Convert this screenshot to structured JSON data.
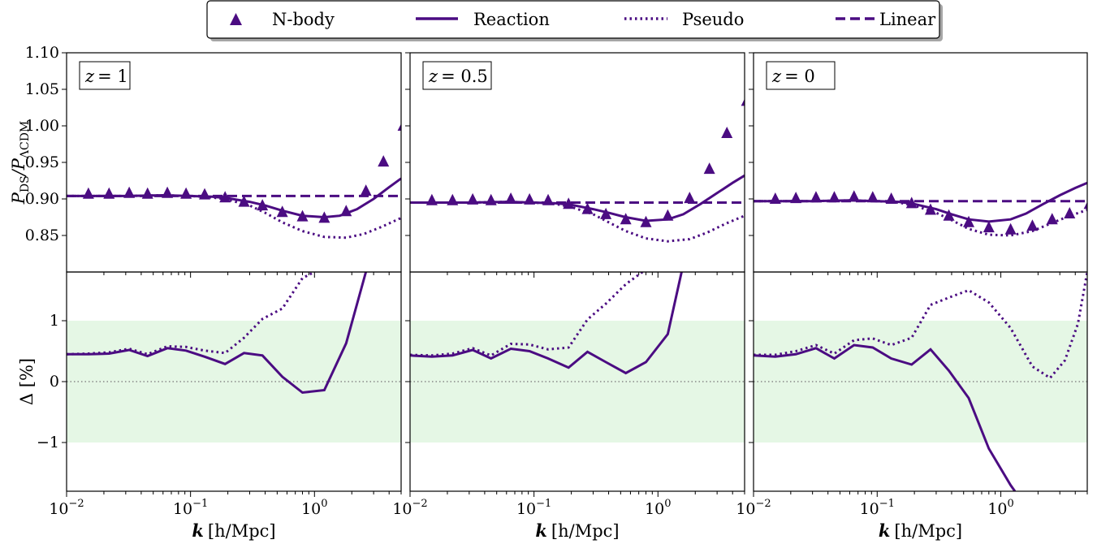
{
  "legend": {
    "nbody": "N-body",
    "reaction": "Reaction",
    "pseudo": "Pseudo",
    "linear": "Linear"
  },
  "colors": {
    "line": "#4b0c82",
    "band": "#e5f7e5",
    "zero": "#888888"
  },
  "axes": {
    "ylabel_top": "PDS/PΛCDM",
    "ylabel_top_main1": "P",
    "ylabel_top_sub1": "DS",
    "ylabel_top_main2": "/P",
    "ylabel_top_sub2": "ΛCDM",
    "ylabel_bottom": "Δ [%]",
    "xlabel": "k [h/Mpc]",
    "xlabel_k": "k",
    "xlabel_unit": "[h/Mpc]",
    "xticks": [
      {
        "base": "10",
        "exp": "−2"
      },
      {
        "base": "10",
        "exp": "−1"
      },
      {
        "base": "10",
        "exp": "0"
      }
    ],
    "yticks_top": [
      "1.10",
      "1.05",
      "1.00",
      "0.95",
      "0.90",
      "0.85"
    ],
    "yticks_bottom": [
      "1",
      "0",
      "−1"
    ]
  },
  "chart_data": {
    "type": "line",
    "x_scale": "log",
    "xlim": [
      0.01,
      5.0
    ],
    "ylim_top": [
      0.8,
      1.1
    ],
    "ylim_bottom": [
      -1.8,
      1.8
    ],
    "band_bottom": [
      -1,
      1
    ],
    "reference_line_bottom": 0,
    "grid": false,
    "legend_position": "top-center",
    "panels": [
      {
        "label": "z = 1",
        "z_label_var": "z",
        "z_label_val": "= 1",
        "nbody": {
          "x": [
            0.015,
            0.022,
            0.032,
            0.045,
            0.065,
            0.092,
            0.13,
            0.19,
            0.27,
            0.38,
            0.55,
            0.8,
            1.2,
            1.8,
            2.6,
            3.6,
            5.2
          ],
          "y": [
            0.907,
            0.907,
            0.908,
            0.907,
            0.908,
            0.907,
            0.906,
            0.902,
            0.896,
            0.891,
            0.882,
            0.876,
            0.874,
            0.883,
            0.911,
            0.951,
            1.0
          ]
        },
        "reaction": {
          "x": [
            0.01,
            0.03,
            0.06,
            0.1,
            0.15,
            0.2,
            0.3,
            0.4,
            0.55,
            0.8,
            1.2,
            1.6,
            2.2,
            3.0,
            4.0,
            5.0
          ],
          "y": [
            0.904,
            0.904,
            0.905,
            0.904,
            0.903,
            0.901,
            0.896,
            0.891,
            0.884,
            0.877,
            0.875,
            0.877,
            0.886,
            0.9,
            0.916,
            0.928
          ]
        },
        "pseudo": {
          "x": [
            0.01,
            0.03,
            0.06,
            0.1,
            0.15,
            0.2,
            0.3,
            0.4,
            0.55,
            0.8,
            1.2,
            1.8,
            2.5,
            3.5,
            5.0
          ],
          "y": [
            0.904,
            0.904,
            0.905,
            0.904,
            0.902,
            0.899,
            0.891,
            0.881,
            0.868,
            0.856,
            0.848,
            0.847,
            0.852,
            0.862,
            0.874
          ]
        },
        "linear": {
          "x": [
            0.01,
            5.0
          ],
          "y": [
            0.904,
            0.904
          ]
        },
        "delta_reaction": {
          "x": [
            0.01,
            0.015,
            0.022,
            0.032,
            0.045,
            0.065,
            0.092,
            0.13,
            0.19,
            0.27,
            0.38,
            0.55,
            0.8,
            1.2,
            1.8,
            2.6
          ],
          "y": [
            0.45,
            0.45,
            0.46,
            0.52,
            0.42,
            0.55,
            0.51,
            0.41,
            0.29,
            0.47,
            0.43,
            0.08,
            -0.18,
            -0.14,
            0.63,
            1.8
          ]
        },
        "delta_pseudo": {
          "x": [
            0.01,
            0.015,
            0.022,
            0.032,
            0.045,
            0.065,
            0.092,
            0.13,
            0.19,
            0.27,
            0.38,
            0.55,
            0.8,
            1.0
          ],
          "y": [
            0.45,
            0.46,
            0.48,
            0.54,
            0.45,
            0.58,
            0.57,
            0.51,
            0.47,
            0.72,
            1.03,
            1.2,
            1.7,
            1.8
          ]
        }
      },
      {
        "label": "z = 0.5",
        "z_label_var": "z",
        "z_label_val": "= 0.5",
        "nbody": {
          "x": [
            0.015,
            0.022,
            0.032,
            0.045,
            0.065,
            0.092,
            0.13,
            0.19,
            0.27,
            0.38,
            0.55,
            0.8,
            1.2,
            1.8,
            2.6,
            3.6,
            5.2
          ],
          "y": [
            0.898,
            0.898,
            0.899,
            0.898,
            0.9,
            0.899,
            0.898,
            0.893,
            0.886,
            0.879,
            0.872,
            0.868,
            0.877,
            0.901,
            0.941,
            0.99,
            1.034
          ]
        },
        "reaction": {
          "x": [
            0.01,
            0.03,
            0.06,
            0.1,
            0.15,
            0.2,
            0.3,
            0.4,
            0.55,
            0.8,
            1.2,
            1.6,
            2.2,
            3.0,
            4.0,
            5.0
          ],
          "y": [
            0.895,
            0.895,
            0.896,
            0.895,
            0.894,
            0.892,
            0.886,
            0.881,
            0.875,
            0.87,
            0.872,
            0.879,
            0.893,
            0.908,
            0.922,
            0.932
          ]
        },
        "pseudo": {
          "x": [
            0.01,
            0.03,
            0.06,
            0.1,
            0.15,
            0.2,
            0.3,
            0.4,
            0.55,
            0.8,
            1.2,
            1.8,
            2.5,
            3.5,
            5.0
          ],
          "y": [
            0.895,
            0.895,
            0.896,
            0.895,
            0.893,
            0.889,
            0.879,
            0.868,
            0.856,
            0.846,
            0.842,
            0.845,
            0.854,
            0.866,
            0.877
          ]
        },
        "linear": {
          "x": [
            0.01,
            5.0
          ],
          "y": [
            0.895,
            0.895
          ]
        },
        "delta_reaction": {
          "x": [
            0.01,
            0.015,
            0.022,
            0.032,
            0.045,
            0.065,
            0.092,
            0.13,
            0.19,
            0.27,
            0.38,
            0.55,
            0.8,
            1.2,
            1.55
          ],
          "y": [
            0.43,
            0.41,
            0.43,
            0.52,
            0.38,
            0.54,
            0.5,
            0.38,
            0.23,
            0.49,
            0.32,
            0.14,
            0.32,
            0.78,
            1.8
          ]
        },
        "delta_pseudo": {
          "x": [
            0.01,
            0.015,
            0.022,
            0.032,
            0.045,
            0.065,
            0.092,
            0.13,
            0.19,
            0.27,
            0.38,
            0.55,
            0.75
          ],
          "y": [
            0.44,
            0.43,
            0.46,
            0.55,
            0.43,
            0.62,
            0.61,
            0.53,
            0.56,
            1.02,
            1.28,
            1.6,
            1.8
          ]
        }
      },
      {
        "label": "z = 0",
        "z_label_var": "z",
        "z_label_val": "= 0",
        "nbody": {
          "x": [
            0.015,
            0.022,
            0.032,
            0.045,
            0.065,
            0.092,
            0.13,
            0.19,
            0.27,
            0.38,
            0.55,
            0.8,
            1.2,
            1.8,
            2.6,
            3.6,
            5.2
          ],
          "y": [
            0.9,
            0.901,
            0.902,
            0.902,
            0.903,
            0.902,
            0.9,
            0.894,
            0.885,
            0.877,
            0.868,
            0.861,
            0.858,
            0.863,
            0.872,
            0.88,
            0.893
          ]
        },
        "reaction": {
          "x": [
            0.01,
            0.03,
            0.06,
            0.1,
            0.15,
            0.2,
            0.3,
            0.4,
            0.55,
            0.8,
            1.2,
            1.6,
            2.2,
            3.0,
            4.0,
            5.0
          ],
          "y": [
            0.897,
            0.897,
            0.898,
            0.897,
            0.896,
            0.893,
            0.886,
            0.879,
            0.872,
            0.869,
            0.872,
            0.88,
            0.893,
            0.905,
            0.915,
            0.922
          ]
        },
        "pseudo": {
          "x": [
            0.01,
            0.03,
            0.06,
            0.1,
            0.15,
            0.2,
            0.3,
            0.4,
            0.55,
            0.8,
            1.2,
            1.8,
            2.5,
            3.5,
            5.0
          ],
          "y": [
            0.897,
            0.897,
            0.898,
            0.897,
            0.895,
            0.891,
            0.881,
            0.871,
            0.859,
            0.851,
            0.85,
            0.856,
            0.866,
            0.876,
            0.885
          ]
        },
        "linear": {
          "x": [
            0.01,
            5.0
          ],
          "y": [
            0.897,
            0.897
          ]
        },
        "delta_reaction": {
          "x": [
            0.01,
            0.015,
            0.022,
            0.032,
            0.045,
            0.065,
            0.092,
            0.13,
            0.19,
            0.27,
            0.38,
            0.55,
            0.8,
            1.2,
            1.3
          ],
          "y": [
            0.43,
            0.41,
            0.45,
            0.55,
            0.38,
            0.6,
            0.56,
            0.38,
            0.28,
            0.53,
            0.18,
            -0.27,
            -1.1,
            -1.7,
            -1.8
          ]
        },
        "delta_pseudo": {
          "x": [
            0.01,
            0.015,
            0.022,
            0.032,
            0.045,
            0.065,
            0.092,
            0.13,
            0.19,
            0.27,
            0.38,
            0.55,
            0.8,
            1.2,
            1.8,
            2.5,
            3.3,
            4.2,
            5.0
          ],
          "y": [
            0.44,
            0.44,
            0.5,
            0.6,
            0.46,
            0.68,
            0.71,
            0.6,
            0.72,
            1.26,
            1.38,
            1.5,
            1.3,
            0.88,
            0.25,
            0.06,
            0.35,
            0.95,
            1.8
          ]
        }
      }
    ]
  }
}
